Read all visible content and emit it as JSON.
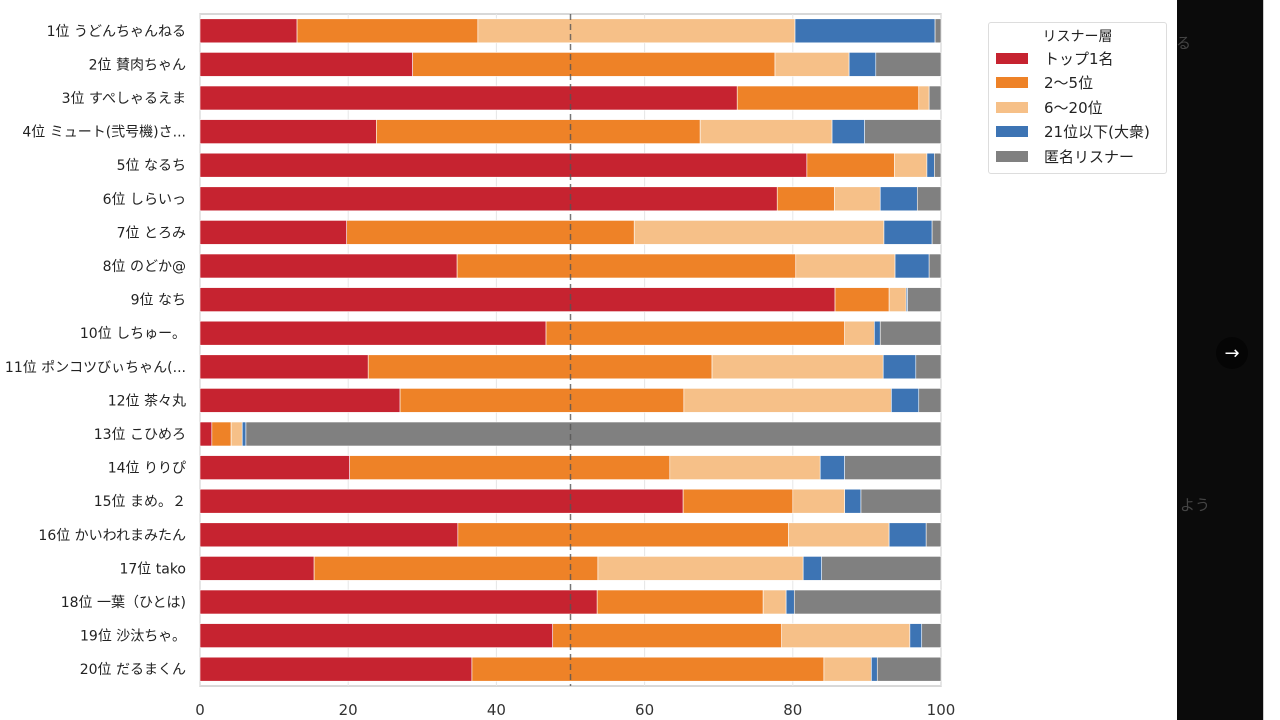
{
  "chart_data": {
    "type": "bar",
    "orientation": "horizontal",
    "stacked": true,
    "title": "",
    "xlabel": "",
    "ylabel": "",
    "xlim": [
      0,
      100
    ],
    "xticks": [
      0,
      20,
      40,
      60,
      80,
      100
    ],
    "grid": true,
    "reference_line": {
      "x": 50,
      "style": "dashed"
    },
    "legend": {
      "title": "リスナー層",
      "placement": "outside-top-right"
    },
    "categories": [
      "1位 うどんちゃんねる",
      "2位 賛肉ちゃん",
      "3位 すぺしゃるえま",
      "4位 ミュート(弐号機)さ...",
      "5位 なるち",
      "6位 しらいっ",
      "7位 とろみ",
      "8位 のどか@",
      "9位 なち",
      "10位 しちゅー。",
      "11位 ポンコツびぃちゃん(...",
      "12位 茶々丸",
      "13位 こひめろ",
      "14位 りりぴ",
      "15位 まめ。２",
      "16位 かいわれまみたん",
      "17位 tako",
      "18位 一葉（ひとは)",
      "19位 沙汰ちゃ。",
      "20位 だるまくん"
    ],
    "series": [
      {
        "name": "トップ1名",
        "color": "#c62330",
        "values": [
          13.1,
          28.7,
          72.5,
          23.8,
          81.9,
          77.9,
          19.8,
          34.7,
          85.7,
          46.7,
          22.7,
          27.0,
          1.6,
          20.2,
          65.2,
          34.8,
          15.4,
          53.6,
          47.6,
          36.7
        ]
      },
      {
        "name": "2〜5位",
        "color": "#ee8227",
        "values": [
          24.4,
          48.9,
          24.5,
          43.7,
          11.8,
          7.7,
          38.8,
          45.7,
          7.3,
          40.3,
          46.4,
          38.3,
          2.6,
          43.2,
          14.8,
          44.6,
          38.3,
          22.4,
          30.9,
          47.5
        ]
      },
      {
        "name": "6〜20位",
        "color": "#f6c088",
        "values": [
          42.8,
          10.0,
          1.4,
          17.8,
          4.4,
          6.2,
          33.7,
          13.4,
          2.3,
          4.0,
          23.1,
          28.0,
          1.5,
          20.3,
          7.0,
          13.6,
          27.7,
          3.1,
          17.3,
          6.4
        ]
      },
      {
        "name": "21位以下(大衆)",
        "color": "#3d74b4",
        "values": [
          18.9,
          3.6,
          0.0,
          4.4,
          1.0,
          5.0,
          6.5,
          4.6,
          0.2,
          0.8,
          4.4,
          3.7,
          0.5,
          3.3,
          2.2,
          5.0,
          2.5,
          1.1,
          1.6,
          0.8
        ]
      },
      {
        "name": "匿名リスナー",
        "color": "#808080",
        "values": [
          0.8,
          8.8,
          1.6,
          10.3,
          0.9,
          3.2,
          1.2,
          1.6,
          4.5,
          8.2,
          3.4,
          3.0,
          93.8,
          13.0,
          10.8,
          2.0,
          16.1,
          19.8,
          2.6,
          8.6
        ]
      }
    ]
  },
  "overlay": {
    "ghost_text": [
      "る",
      "よう"
    ],
    "next_icon": "arrow-right-icon"
  }
}
